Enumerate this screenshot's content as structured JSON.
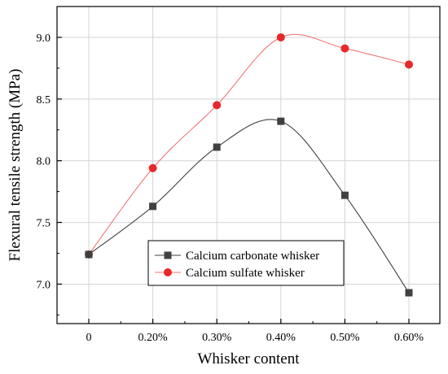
{
  "chart_data": {
    "type": "line",
    "title": "",
    "xlabel": "Whisker content",
    "ylabel": "Flexural tensile strength (MPa)",
    "categories": [
      "0",
      "0.20%",
      "0.30%",
      "0.40%",
      "0.50%",
      "0.60%"
    ],
    "yticks": [
      "7.0",
      "7.5",
      "8.0",
      "8.5",
      "9.0"
    ],
    "ylim": [
      6.68,
      9.25
    ],
    "grid": true,
    "legend_position": "bottom-center",
    "series": [
      {
        "name": "Calcium carbonate whisker",
        "marker": "square",
        "color": "#404040",
        "line_color": "#404040",
        "values": [
          7.24,
          7.63,
          8.11,
          8.32,
          7.72,
          6.93
        ]
      },
      {
        "name": "Calcium sulfate whisker",
        "marker": "circle",
        "color": "#e8282a",
        "line_color": "#f07a7a",
        "values": [
          7.24,
          7.94,
          8.45,
          9.0,
          8.91,
          8.78
        ]
      }
    ]
  }
}
